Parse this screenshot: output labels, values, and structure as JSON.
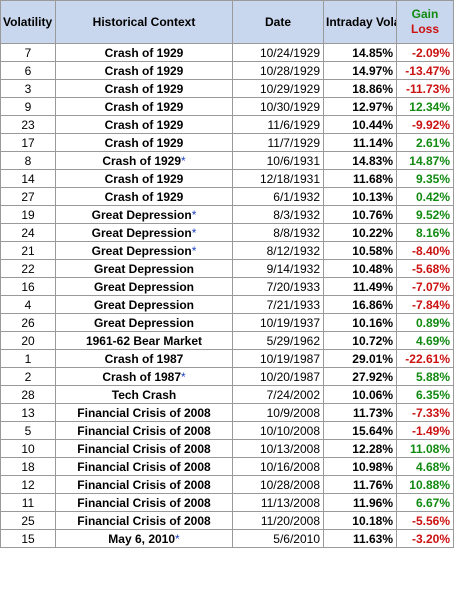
{
  "header": {
    "rank": "Volatility Rank",
    "context": "Historical Context",
    "date": "Date",
    "volatility": "Intraday Volatility",
    "gain": "Gain",
    "loss": "Loss"
  },
  "rows": [
    {
      "rank": "7",
      "context": "Crash of 1929",
      "star": "",
      "date": "10/24/1929",
      "vol": "14.85%",
      "gl": "-2.09%"
    },
    {
      "rank": "6",
      "context": "Crash of 1929",
      "star": "",
      "date": "10/28/1929",
      "vol": "14.97%",
      "gl": "-13.47%"
    },
    {
      "rank": "3",
      "context": "Crash of 1929",
      "star": "",
      "date": "10/29/1929",
      "vol": "18.86%",
      "gl": "-11.73%"
    },
    {
      "rank": "9",
      "context": "Crash of 1929",
      "star": "",
      "date": "10/30/1929",
      "vol": "12.97%",
      "gl": "12.34%"
    },
    {
      "rank": "23",
      "context": "Crash of 1929",
      "star": "",
      "date": "11/6/1929",
      "vol": "10.44%",
      "gl": "-9.92%"
    },
    {
      "rank": "17",
      "context": "Crash of 1929",
      "star": "",
      "date": "11/7/1929",
      "vol": "11.14%",
      "gl": "2.61%"
    },
    {
      "rank": "8",
      "context": "Crash of 1929",
      "star": "*",
      "date": "10/6/1931",
      "vol": "14.83%",
      "gl": "14.87%"
    },
    {
      "rank": "14",
      "context": "Crash of 1929",
      "star": "",
      "date": "12/18/1931",
      "vol": "11.68%",
      "gl": "9.35%"
    },
    {
      "rank": "27",
      "context": "Crash of 1929",
      "star": "",
      "date": "6/1/1932",
      "vol": "10.13%",
      "gl": "0.42%"
    },
    {
      "rank": "19",
      "context": "Great Depression",
      "star": "*",
      "date": "8/3/1932",
      "vol": "10.76%",
      "gl": "9.52%"
    },
    {
      "rank": "24",
      "context": "Great Depression",
      "star": "*",
      "date": "8/8/1932",
      "vol": "10.22%",
      "gl": "8.16%"
    },
    {
      "rank": "21",
      "context": "Great Depression",
      "star": "*",
      "date": "8/12/1932",
      "vol": "10.58%",
      "gl": "-8.40%"
    },
    {
      "rank": "22",
      "context": "Great Depression",
      "star": "",
      "date": "9/14/1932",
      "vol": "10.48%",
      "gl": "-5.68%"
    },
    {
      "rank": "16",
      "context": "Great Depression",
      "star": "",
      "date": "7/20/1933",
      "vol": "11.49%",
      "gl": "-7.07%"
    },
    {
      "rank": "4",
      "context": "Great Depression",
      "star": "",
      "date": "7/21/1933",
      "vol": "16.86%",
      "gl": "-7.84%"
    },
    {
      "rank": "26",
      "context": "Great Depression",
      "star": "",
      "date": "10/19/1937",
      "vol": "10.16%",
      "gl": "0.89%"
    },
    {
      "rank": "20",
      "context": "1961-62 Bear Market",
      "star": "",
      "date": "5/29/1962",
      "vol": "10.72%",
      "gl": "4.69%"
    },
    {
      "rank": "1",
      "context": "Crash of 1987",
      "star": "",
      "date": "10/19/1987",
      "vol": "29.01%",
      "gl": "-22.61%"
    },
    {
      "rank": "2",
      "context": "Crash of 1987",
      "star": "*",
      "date": "10/20/1987",
      "vol": "27.92%",
      "gl": "5.88%"
    },
    {
      "rank": "28",
      "context": "Tech Crash",
      "star": "",
      "date": "7/24/2002",
      "vol": "10.06%",
      "gl": "6.35%"
    },
    {
      "rank": "13",
      "context": "Financial Crisis of 2008",
      "star": "",
      "date": "10/9/2008",
      "vol": "11.73%",
      "gl": "-7.33%"
    },
    {
      "rank": "5",
      "context": "Financial Crisis of 2008",
      "star": "",
      "date": "10/10/2008",
      "vol": "15.64%",
      "gl": "-1.49%"
    },
    {
      "rank": "10",
      "context": "Financial Crisis of 2008",
      "star": "",
      "date": "10/13/2008",
      "vol": "12.28%",
      "gl": "11.08%"
    },
    {
      "rank": "18",
      "context": "Financial Crisis of 2008",
      "star": "",
      "date": "10/16/2008",
      "vol": "10.98%",
      "gl": "4.68%"
    },
    {
      "rank": "12",
      "context": "Financial Crisis of 2008",
      "star": "",
      "date": "10/28/2008",
      "vol": "11.76%",
      "gl": "10.88%"
    },
    {
      "rank": "11",
      "context": "Financial Crisis of 2008",
      "star": "",
      "date": "11/13/2008",
      "vol": "11.96%",
      "gl": "6.67%"
    },
    {
      "rank": "25",
      "context": "Financial Crisis of 2008",
      "star": "",
      "date": "11/20/2008",
      "vol": "10.18%",
      "gl": "-5.56%"
    },
    {
      "rank": "15",
      "context": "May 6, 2010",
      "star": "*",
      "date": "5/6/2010",
      "vol": "11.63%",
      "gl": "-3.20%"
    }
  ],
  "colors": {
    "header_bg": "#c9d7ee",
    "gain": "#118a11",
    "loss": "#cc1111",
    "asterisk": "#1f3fbf",
    "annotation_circle": "#d01818"
  }
}
